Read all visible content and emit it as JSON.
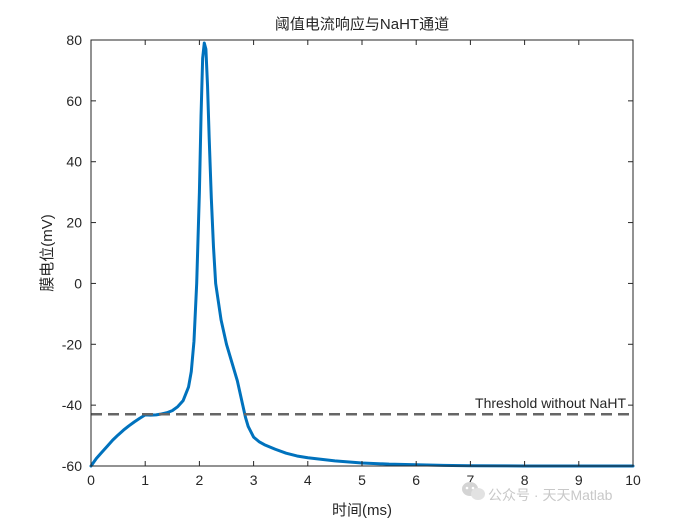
{
  "chart_data": {
    "type": "line",
    "title": "阈值电流响应与NaHT通道",
    "xlabel": "时间(ms)",
    "ylabel": "膜电位(mV)",
    "xlim": [
      0,
      10
    ],
    "ylim": [
      -60,
      80
    ],
    "xticks": [
      0,
      1,
      2,
      3,
      4,
      5,
      6,
      7,
      8,
      9,
      10
    ],
    "yticks": [
      -60,
      -40,
      -20,
      0,
      20,
      40,
      60,
      80
    ],
    "grid": false,
    "series": [
      {
        "color": "#0072BD",
        "style": "solid",
        "x": [
          0,
          0.1,
          0.2,
          0.3,
          0.4,
          0.5,
          0.6,
          0.7,
          0.8,
          0.9,
          1.0,
          1.1,
          1.2,
          1.3,
          1.4,
          1.5,
          1.6,
          1.7,
          1.8,
          1.85,
          1.9,
          1.95,
          2.0,
          2.03,
          2.06,
          2.09,
          2.12,
          2.15,
          2.18,
          2.22,
          2.26,
          2.3,
          2.4,
          2.5,
          2.6,
          2.7,
          2.8,
          2.85,
          2.9,
          3.0,
          3.1,
          3.2,
          3.4,
          3.6,
          3.8,
          4.0,
          4.5,
          5.0,
          5.5,
          6.0,
          6.5,
          7.0,
          8.0,
          9.0,
          10.0
        ],
        "y": [
          -60,
          -57.5,
          -55.5,
          -53.5,
          -51.5,
          -49.8,
          -48.2,
          -46.8,
          -45.5,
          -44.3,
          -43.2,
          -43.3,
          -43.2,
          -42.9,
          -42.5,
          -41.8,
          -40.5,
          -38.5,
          -34,
          -29,
          -19,
          0,
          30,
          55,
          74,
          79,
          77,
          65,
          48,
          28,
          12,
          0,
          -12,
          -20,
          -26,
          -32,
          -40,
          -44,
          -47,
          -50.5,
          -52,
          -53,
          -54.5,
          -55.8,
          -56.7,
          -57.3,
          -58.3,
          -59,
          -59.4,
          -59.6,
          -59.8,
          -59.9,
          -60,
          -60,
          -60
        ]
      },
      {
        "name": "Threshold without NaHT",
        "color": "#666666",
        "style": "dashed",
        "x": [
          0,
          10
        ],
        "y": [
          -43,
          -43
        ]
      }
    ],
    "annotations": [
      {
        "text": "Threshold without NaHT",
        "x": 10,
        "y": -43
      }
    ]
  },
  "watermark": {
    "icon": "wechat-icon",
    "text": "公众号 · 天天Matlab"
  }
}
